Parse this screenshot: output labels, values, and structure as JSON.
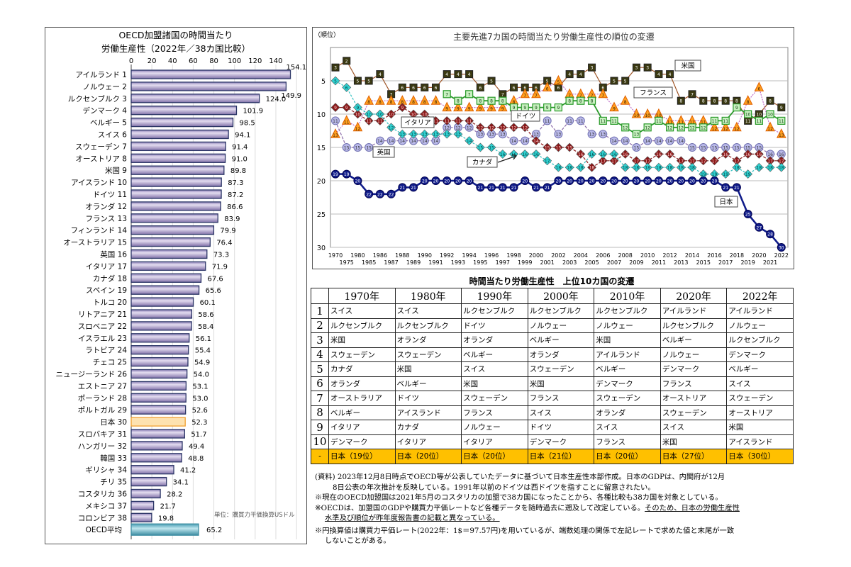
{
  "chart_data": [
    {
      "type": "bar",
      "orientation": "horizontal",
      "title_lines": [
        "OECD加盟諸国の時間当たり",
        "労働生産性（2022年／38カ国比較）"
      ],
      "unit_note": "単位：購買力平価換算USドル",
      "xlim": [
        0,
        160
      ],
      "xticks": [
        0,
        20,
        40,
        60,
        80,
        100,
        120,
        140
      ],
      "grid": "vertical",
      "highlight": "日本",
      "colors": {
        "bar": "#b4a6d2",
        "bar_border": "#2b3566",
        "highlight": "#fde2b0",
        "highlight_border": "#f0a030",
        "average": "#6fb7c9"
      },
      "categories": [
        "アイルランド",
        "ノルウェー",
        "ルクセンブルク",
        "デンマーク",
        "ベルギー",
        "スイス",
        "スウェーデン",
        "オーストリア",
        "米国",
        "アイスランド",
        "ドイツ",
        "オランダ",
        "フランス",
        "フィンランド",
        "オーストラリア",
        "英国",
        "イタリア",
        "カナダ",
        "スペイン",
        "トルコ",
        "リトアニア",
        "スロベニア",
        "イスラエル",
        "ラトビア",
        "チェコ",
        "ニュージーランド",
        "エストニア",
        "ポーランド",
        "ポルトガル",
        "日本",
        "スロバキア",
        "ハンガリー",
        "韓国",
        "ギリシャ",
        "チリ",
        "コスタリカ",
        "メキシコ",
        "コロンビア",
        "OECD平均"
      ],
      "ranks": [
        "1",
        "2",
        "3",
        "4",
        "5",
        "6",
        "7",
        "8",
        "9",
        "10",
        "11",
        "12",
        "13",
        "14",
        "15",
        "16",
        "17",
        "18",
        "19",
        "20",
        "21",
        "22",
        "23",
        "24",
        "25",
        "26",
        "27",
        "28",
        "29",
        "30",
        "31",
        "32",
        "33",
        "34",
        "35",
        "36",
        "37",
        "38",
        ""
      ],
      "values": [
        "154.1",
        "149.9",
        "124.0",
        "101.9",
        "98.5",
        "94.1",
        "91.4",
        "91.0",
        "89.8",
        "87.3",
        "87.2",
        "86.6",
        "83.9",
        "79.9",
        "76.4",
        "73.3",
        "71.9",
        "67.6",
        "65.6",
        "60.1",
        "58.6",
        "58.4",
        "56.1",
        "55.4",
        "54.9",
        "54.0",
        "53.1",
        "53.0",
        "52.6",
        "52.3",
        "51.7",
        "49.4",
        "48.8",
        "41.2",
        "34.1",
        "28.2",
        "21.7",
        "19.8",
        "65.2"
      ]
    },
    {
      "type": "line",
      "title": "主要先進7カ国の時間当たり労働生産性の順位の変遷",
      "ylabel": "（順位）",
      "y_inverted": true,
      "ylim": [
        0,
        30
      ],
      "yticks": [
        5,
        10,
        15,
        20,
        25,
        30
      ],
      "grid": "horizontal",
      "x": [
        "1970",
        "1975",
        "1980",
        "1985",
        "1986",
        "1987",
        "1988",
        "1989",
        "1990",
        "1991",
        "1992",
        "1993",
        "1994",
        "1995",
        "1996",
        "1997",
        "1998",
        "1999",
        "2000",
        "2001",
        "2002",
        "2003",
        "2004",
        "2005",
        "2006",
        "2007",
        "2008",
        "2009",
        "2010",
        "2011",
        "2012",
        "2013",
        "2014",
        "2015",
        "2016",
        "2017",
        "2018",
        "2019",
        "2020",
        "2021",
        "2022"
      ],
      "series": [
        {
          "name": "米国",
          "marker": "square",
          "color": "#3b3a12",
          "line_color": "#a0582a",
          "values": [
            3,
            2,
            5,
            5,
            4,
            7,
            6,
            6,
            6,
            6,
            4,
            4,
            4,
            6,
            5,
            7,
            6,
            6,
            6,
            5,
            6,
            4,
            4,
            3,
            6,
            5,
            5,
            3,
            3,
            4,
            4,
            8,
            7,
            8,
            8,
            8,
            8,
            11,
            10,
            8,
            9
          ]
        },
        {
          "name": "フランス",
          "marker": "triangle",
          "color": "#ffa020",
          "line_color": "#c070c8",
          "values": [
            13,
            11,
            12,
            8,
            8,
            8,
            8,
            8,
            8,
            8,
            9,
            9,
            9,
            9,
            9,
            9,
            8,
            7,
            7,
            6,
            5,
            7,
            7,
            7,
            7,
            9,
            8,
            10,
            10,
            10,
            11,
            11,
            11,
            11,
            12,
            12,
            12,
            8,
            6,
            12,
            13
          ]
        },
        {
          "name": "ドイツ",
          "marker": "square-open",
          "color": "#c8f0c0",
          "line_color": "#2a9a2a",
          "values": [
            null,
            null,
            null,
            null,
            null,
            null,
            null,
            null,
            null,
            null,
            7,
            8,
            7,
            8,
            8,
            8,
            9,
            9,
            9,
            9,
            9,
            8,
            8,
            8,
            11,
            11,
            12,
            13,
            12,
            11,
            12,
            12,
            12,
            12,
            11,
            11,
            9,
            10,
            11,
            10,
            11
          ]
        },
        {
          "name": "英国",
          "marker": "circle",
          "color": "#b8b8e8",
          "line_color": "#8a6aa8",
          "values": [
            11,
            15,
            15,
            15,
            14,
            14,
            14,
            14,
            14,
            14,
            12,
            12,
            12,
            13,
            13,
            13,
            14,
            14,
            13,
            11,
            13,
            11,
            11,
            13,
            13,
            14,
            14,
            15,
            14,
            14,
            14,
            14,
            15,
            15,
            15,
            15,
            15,
            15,
            15,
            16,
            16
          ]
        },
        {
          "name": "イタリア",
          "marker": "diamond",
          "color": "#8b1a1a",
          "line_color": "#8b1a1a",
          "values": [
            9,
            9,
            10,
            11,
            11,
            10,
            9,
            10,
            10,
            11,
            11,
            11,
            11,
            12,
            12,
            12,
            12,
            12,
            14,
            15,
            15,
            15,
            16,
            18,
            17,
            17,
            16,
            17,
            17,
            16,
            16,
            17,
            17,
            17,
            17,
            16,
            17,
            16,
            16,
            17,
            17
          ]
        },
        {
          "name": "カナダ",
          "marker": "diamond",
          "color": "#30d0d0",
          "line_color": "#30c0c0",
          "values": [
            5,
            6,
            9,
            10,
            10,
            12,
            13,
            13,
            13,
            13,
            13,
            13,
            14,
            15,
            15,
            16,
            16,
            16,
            16,
            17,
            18,
            18,
            18,
            16,
            16,
            16,
            18,
            18,
            18,
            18,
            18,
            18,
            18,
            19,
            19,
            19,
            18,
            19,
            18,
            18,
            18
          ]
        },
        {
          "name": "日本",
          "marker": "circle",
          "color": "#101c8a",
          "line_color": "#101c8a",
          "values": [
            19,
            19,
            20,
            22,
            22,
            22,
            21,
            21,
            20,
            20,
            20,
            20,
            20,
            21,
            21,
            21,
            21,
            20,
            21,
            21,
            20,
            20,
            20,
            20,
            20,
            20,
            20,
            20,
            20,
            20,
            20,
            20,
            20,
            20,
            20,
            21,
            21,
            25,
            27,
            28,
            30
          ]
        }
      ]
    }
  ],
  "table": {
    "title": "時間当たり労働生産性　上位10カ国の変遷",
    "headers": [
      "",
      "1970年",
      "1980年",
      "1990年",
      "2000年",
      "2010年",
      "2020年",
      "2022年"
    ],
    "rows": [
      [
        "1",
        "スイス",
        "スイス",
        "ルクセンブルク",
        "ルクセンブルク",
        "ルクセンブルク",
        "アイルランド",
        "アイルランド"
      ],
      [
        "2",
        "ルクセンブルク",
        "ルクセンブルク",
        "ドイツ",
        "ノルウェー",
        "ノルウェー",
        "ルクセンブルク",
        "ノルウェー"
      ],
      [
        "3",
        "米国",
        "オランダ",
        "オランダ",
        "ベルギー",
        "米国",
        "ベルギー",
        "ルクセンブルク"
      ],
      [
        "4",
        "スウェーデン",
        "スウェーデン",
        "ベルギー",
        "オランダ",
        "アイルランド",
        "ノルウェー",
        "デンマーク"
      ],
      [
        "5",
        "カナダ",
        "米国",
        "スイス",
        "スウェーデン",
        "ベルギー",
        "デンマーク",
        "ベルギー"
      ],
      [
        "6",
        "オランダ",
        "ベルギー",
        "米国",
        "米国",
        "デンマーク",
        "フランス",
        "スイス"
      ],
      [
        "7",
        "オーストラリア",
        "ドイツ",
        "スウェーデン",
        "フランス",
        "スウェーデン",
        "オーストリア",
        "スウェーデン"
      ],
      [
        "8",
        "ベルギー",
        "アイスランド",
        "フランス",
        "スイス",
        "オランダ",
        "スウェーデン",
        "オーストリア"
      ],
      [
        "9",
        "イタリア",
        "カナダ",
        "ノルウェー",
        "ドイツ",
        "スイス",
        "スイス",
        "米国"
      ],
      [
        "10",
        "デンマーク",
        "イタリア",
        "イタリア",
        "デンマーク",
        "フランス",
        "米国",
        "アイスランド"
      ]
    ],
    "japan_row": [
      "-",
      "日本（19位）",
      "日本（20位）",
      "日本（20位）",
      "日本（21位）",
      "日本（20位）",
      "日本（27位）",
      "日本（30位）"
    ],
    "highlight_color": "#ffc000"
  },
  "notes": {
    "source_1": "(資料) 2023年12月8日時点でOECD等が公表していたデータに基づいて日本生産性本部作成。日本のGDPは、内閣府が12月",
    "source_2": "8日公表の年次推計を反映している。1991年以前のドイツは西ドイツを指すことに留意されたい。",
    "note_1": "※現在のOECD加盟国は2021年5月のコスタリカの加盟で38カ国になったことから、各種比較も38カ国を対象としている。",
    "note_2a": "※OECDは、加盟国のGDPや購買力平価レートなど各種データを随時過去に遡及して改定している。",
    "note_2b": "そのため、日本の労働生産性",
    "note_2c": "水準及び順位が昨年度報告書の記載と異なっている。",
    "note_3a": "※円換算値は購買力平価レート(2022年：1$＝97.57円)を用いているが、端数処理の関係で左記レートで求めた値と末尾が一致",
    "note_3b": "しないことがある。"
  }
}
